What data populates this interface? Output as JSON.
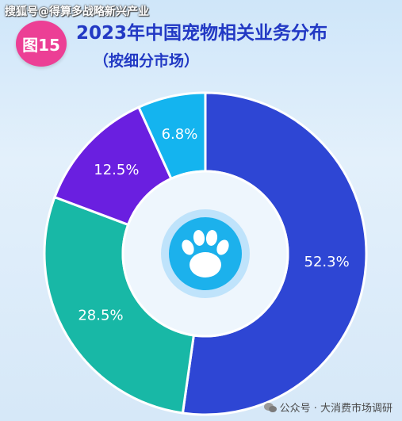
{
  "watermark": "搜狐号@得算多战略新兴产业",
  "badge": "图15",
  "title": "2023年中国宠物相关业务分布",
  "subtitle": "（按细分市场）",
  "footer": {
    "text": "公众号 · 大消费市场调研",
    "icon": "wechat-icon"
  },
  "center_icon": "paw-icon",
  "colors": {
    "title": "#2239c4",
    "badge": "#ec3f95"
  },
  "chart_data": {
    "type": "pie",
    "donut": true,
    "slices": [
      {
        "label": "52.3%",
        "value": 52.3,
        "color": "#2e46d4"
      },
      {
        "label": "28.5%",
        "value": 28.5,
        "color": "#18b8a6"
      },
      {
        "label": "12.5%",
        "value": 12.5,
        "color": "#6a1fe0"
      },
      {
        "label": "6.8%",
        "value": 6.8,
        "color": "#14b4ef"
      }
    ]
  }
}
